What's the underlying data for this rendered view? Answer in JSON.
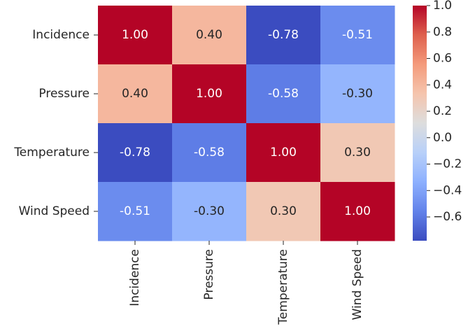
{
  "chart_data": {
    "type": "heatmap",
    "rows": [
      "Incidence",
      "Pressure",
      "Temperature",
      "Wind Speed"
    ],
    "columns": [
      "Incidence",
      "Pressure",
      "Temperature",
      "Wind Speed"
    ],
    "values": [
      [
        1.0,
        0.4,
        -0.78,
        -0.51
      ],
      [
        0.4,
        1.0,
        -0.58,
        -0.3
      ],
      [
        -0.78,
        -0.58,
        1.0,
        0.3
      ],
      [
        -0.51,
        -0.3,
        0.3,
        1.0
      ]
    ],
    "cell_labels": [
      [
        "1.00",
        "0.40",
        "-0.78",
        "-0.51"
      ],
      [
        "0.40",
        "1.00",
        "-0.58",
        "-0.30"
      ],
      [
        "-0.78",
        "-0.58",
        "1.00",
        "0.30"
      ],
      [
        "-0.51",
        "-0.30",
        "0.30",
        "1.00"
      ]
    ],
    "colormap": "coolwarm",
    "colorbar": {
      "range": [
        -0.78,
        1.0
      ],
      "ticks": [
        1.0,
        0.8,
        0.6,
        0.4,
        0.2,
        0.0,
        -0.2,
        -0.4,
        -0.6
      ],
      "tick_labels": [
        "1.0",
        "0.8",
        "0.6",
        "0.4",
        "0.2",
        "0.0",
        "−0.2",
        "−0.4",
        "−0.6"
      ],
      "placement": "right"
    },
    "title": "",
    "xlabel": "",
    "ylabel": ""
  }
}
